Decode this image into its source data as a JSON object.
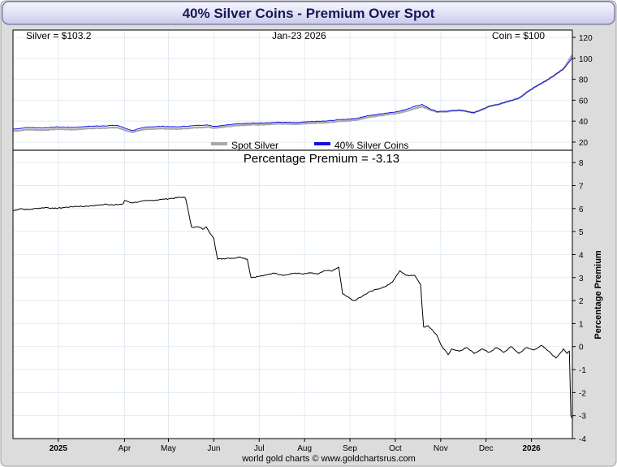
{
  "chart_data": [
    {
      "type": "line",
      "title": "40% Silver Coins - Premium Over Spot",
      "info": {
        "silver_label": "Silver = $103.2",
        "date_label": "Jan-23  2026",
        "coin_label": "Coin = $100"
      },
      "legend": [
        {
          "name": "Spot Silver",
          "color": "#a8a8a8"
        },
        {
          "name": "40% Silver Coins",
          "color": "#1010e0"
        }
      ],
      "ylim": [
        13,
        127
      ],
      "yticks": [
        20,
        40,
        60,
        80,
        100,
        120
      ],
      "x_months": [
        "2025",
        "Apr",
        "May",
        "Jun",
        "Jul",
        "Aug",
        "Sep",
        "Oct",
        "Nov",
        "Dec",
        "2026"
      ],
      "x_month_day_positions": [
        61,
        150,
        209,
        270,
        331,
        392,
        453,
        514,
        575,
        636,
        697
      ],
      "x_start_day": 0,
      "x_end_day": 752,
      "series": [
        {
          "name": "Spot Silver",
          "x_days": [
            0,
            20,
            40,
            60,
            80,
            100,
            120,
            140,
            150,
            160,
            180,
            200,
            220,
            240,
            260,
            270,
            300,
            320,
            340,
            360,
            380,
            400,
            420,
            440,
            460,
            480,
            500,
            520,
            540,
            550,
            560,
            570,
            580,
            600,
            620,
            640,
            660,
            680,
            700,
            720,
            740,
            752
          ],
          "values": [
            30.5,
            32.0,
            31.5,
            32.5,
            32.0,
            33.0,
            33.5,
            34.0,
            31.5,
            29.5,
            32.5,
            33.0,
            32.5,
            33.5,
            34.5,
            33.5,
            36.0,
            36.5,
            37.0,
            37.5,
            37.0,
            38.0,
            38.5,
            40.0,
            41.0,
            44.0,
            46.0,
            48.0,
            52.0,
            54.0,
            51.0,
            48.5,
            49.0,
            50.5,
            48.0,
            54.0,
            57.5,
            62.0,
            72.0,
            80.0,
            90.0,
            103.2
          ]
        },
        {
          "name": "40% Silver Coins",
          "x_days": [
            0,
            20,
            40,
            60,
            80,
            100,
            120,
            140,
            150,
            160,
            180,
            200,
            220,
            240,
            260,
            270,
            300,
            320,
            340,
            360,
            380,
            400,
            420,
            440,
            460,
            480,
            500,
            520,
            540,
            550,
            560,
            570,
            580,
            600,
            620,
            640,
            660,
            680,
            700,
            720,
            740,
            752
          ],
          "values": [
            32.3,
            34.0,
            33.5,
            34.5,
            34.0,
            35.0,
            35.5,
            36.0,
            33.5,
            31.0,
            34.5,
            35.0,
            34.5,
            35.5,
            36.5,
            35.0,
            37.5,
            38.0,
            38.5,
            39.0,
            38.5,
            39.5,
            40.0,
            41.5,
            42.5,
            45.5,
            47.5,
            49.5,
            54.0,
            56.0,
            52.0,
            49.0,
            49.5,
            50.5,
            48.0,
            54.0,
            57.5,
            62.0,
            72.0,
            80.0,
            90.0,
            100.0
          ]
        }
      ]
    },
    {
      "type": "line",
      "title": "Percentage Premium = -3.13",
      "ylabel": "Percentage Premium",
      "ylim": [
        -4,
        8.5
      ],
      "yticks": [
        -4,
        -3,
        -2,
        -1,
        0,
        1,
        2,
        3,
        4,
        5,
        6,
        7,
        8
      ],
      "x_start_day": 0,
      "x_end_day": 752,
      "series": [
        {
          "name": "Percentage Premium",
          "x_days": [
            0,
            10,
            20,
            30,
            45,
            55,
            70,
            85,
            100,
            115,
            125,
            135,
            148,
            150,
            160,
            170,
            185,
            200,
            215,
            230,
            232,
            240,
            250,
            255,
            260,
            268,
            270,
            275,
            290,
            300,
            305,
            315,
            320,
            330,
            340,
            350,
            365,
            380,
            390,
            400,
            410,
            420,
            430,
            438,
            443,
            455,
            460,
            470,
            480,
            490,
            500,
            510,
            520,
            528,
            540,
            548,
            552,
            558,
            570,
            575,
            585,
            590,
            600,
            610,
            620,
            630,
            640,
            650,
            660,
            670,
            680,
            690,
            700,
            710,
            720,
            730,
            740,
            745,
            748,
            750,
            752
          ],
          "values": [
            5.9,
            6.0,
            5.95,
            6.0,
            6.05,
            6.0,
            6.05,
            6.1,
            6.1,
            6.15,
            6.2,
            6.15,
            6.2,
            6.35,
            6.25,
            6.3,
            6.35,
            6.4,
            6.45,
            6.5,
            6.45,
            5.2,
            5.2,
            5.1,
            5.2,
            4.8,
            4.7,
            3.8,
            3.85,
            3.85,
            3.9,
            3.8,
            3.0,
            3.05,
            3.1,
            3.2,
            3.1,
            3.2,
            3.15,
            3.2,
            3.15,
            3.3,
            3.3,
            3.45,
            2.3,
            2.05,
            2.0,
            2.2,
            2.4,
            2.5,
            2.6,
            2.8,
            3.3,
            3.1,
            3.1,
            2.7,
            0.85,
            0.9,
            0.5,
            0.1,
            -0.35,
            -0.1,
            -0.2,
            -0.05,
            -0.3,
            -0.1,
            -0.25,
            -0.05,
            -0.25,
            0.0,
            -0.3,
            -0.05,
            -0.15,
            0.05,
            -0.2,
            -0.5,
            -0.1,
            -0.3,
            -0.2,
            -3.0,
            -3.13
          ]
        }
      ]
    }
  ],
  "footer": "world gold charts © www.goldchartsrus.com"
}
